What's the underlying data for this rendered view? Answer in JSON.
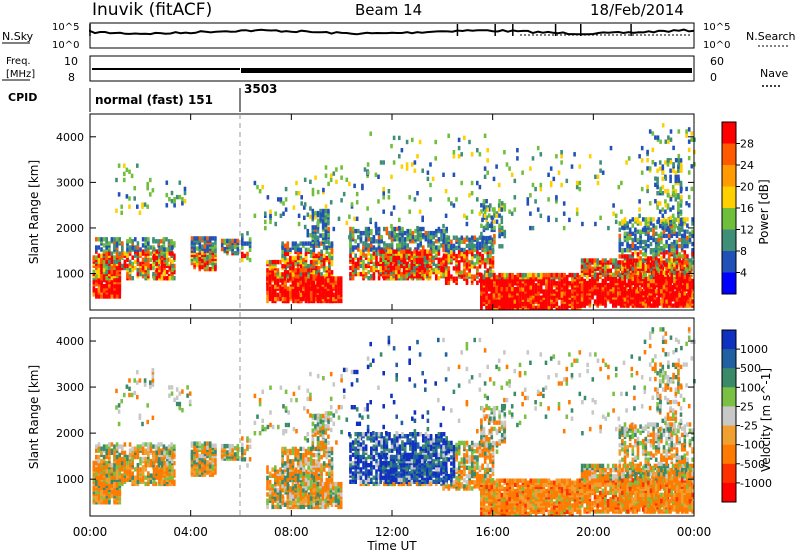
{
  "header": {
    "title": "Inuvik (fitACF)",
    "beam": "Beam 14",
    "date": "18/Feb/2014"
  },
  "top_panels": {
    "nsky_label": "N.Sky",
    "nsky_ticks": [
      "10^5",
      "10^0"
    ],
    "nsearch_label": "N.Search",
    "nsearch_ticks": [
      "10^5",
      "10^0"
    ],
    "freq_label_line1": "Freq.",
    "freq_label_line2": "[MHz]",
    "freq_ticks": [
      "10",
      "8"
    ],
    "nave_label": "Nave",
    "nave_ticks": [
      "60",
      "0"
    ],
    "cpid_label": "CPID",
    "cpid_segments": [
      {
        "label": "normal (fast) 151",
        "start_hour": 0
      },
      {
        "label": "3503",
        "start_hour": 6
      }
    ]
  },
  "chart_data": [
    {
      "type": "heatmap",
      "title": "",
      "quantity": "Power",
      "xlabel": "",
      "ylabel": "Slant Range [km]",
      "colorbar_label": "Power [dB]",
      "colorbar_ticks": [
        "28",
        "24",
        "20",
        "16",
        "12",
        "8",
        "4"
      ],
      "colorbar_values": [
        28,
        24,
        20,
        16,
        12,
        8,
        4
      ],
      "colors": [
        "#ff0000",
        "#ff5a00",
        "#ff9a00",
        "#ffd000",
        "#6fbf3c",
        "#3f8f78",
        "#2050b8",
        "#0000ff"
      ],
      "xlim": [
        0,
        24
      ],
      "ylim": [
        200,
        4500
      ],
      "yticks": [
        1000,
        2000,
        3000,
        4000
      ],
      "xticks": [
        "00:00",
        "04:00",
        "08:00",
        "12:00",
        "16:00",
        "20:00",
        "00:00"
      ]
    },
    {
      "type": "heatmap",
      "title": "",
      "quantity": "Velocity",
      "xlabel": "Time UT",
      "ylabel": "Slant Range [km]",
      "colorbar_label": "Velocity [m s^-1]",
      "colorbar_ticks": [
        "1000",
        "500",
        "100",
        "25",
        "-25",
        "-100",
        "-500",
        "-1000"
      ],
      "colorbar_values": [
        1000,
        500,
        100,
        25,
        -25,
        -100,
        -500,
        -1000
      ],
      "colors": [
        "#1030c0",
        "#2060a0",
        "#3a8a6a",
        "#7ac043",
        "#c8c8c8",
        "#f0a030",
        "#ff7a00",
        "#ff3000",
        "#ff0000"
      ],
      "xlim": [
        0,
        24
      ],
      "ylim": [
        200,
        4500
      ],
      "yticks": [
        1000,
        2000,
        3000,
        4000
      ],
      "xticks": [
        "00:00",
        "04:00",
        "08:00",
        "12:00",
        "16:00",
        "20:00",
        "00:00"
      ]
    }
  ]
}
